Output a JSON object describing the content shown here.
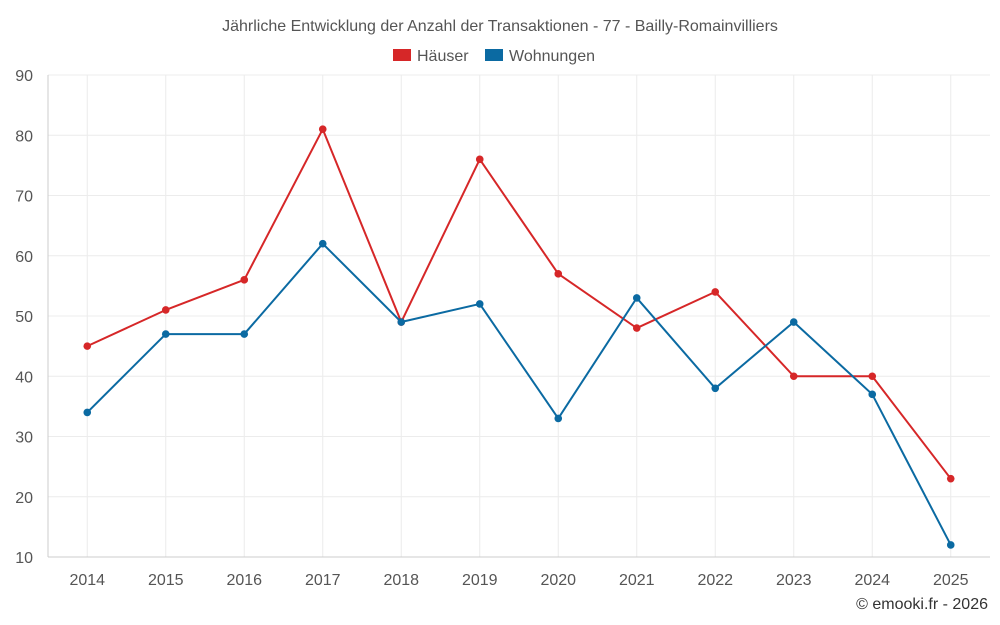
{
  "chart_data": {
    "type": "line",
    "title": "Jährliche Entwicklung der Anzahl der Transaktionen - 77 - Bailly-Romainvilliers",
    "categories": [
      "2014",
      "2015",
      "2016",
      "2017",
      "2018",
      "2019",
      "2020",
      "2021",
      "2022",
      "2023",
      "2024",
      "2025"
    ],
    "series": [
      {
        "name": "Häuser",
        "color": "#d62728",
        "values": [
          45,
          51,
          56,
          81,
          49,
          76,
          57,
          48,
          54,
          40,
          40,
          23
        ]
      },
      {
        "name": "Wohnungen",
        "color": "#0b6aa2",
        "values": [
          34,
          47,
          47,
          62,
          49,
          52,
          33,
          53,
          38,
          49,
          37,
          12
        ]
      }
    ],
    "yticks": [
      10,
      20,
      30,
      40,
      50,
      60,
      70,
      80,
      90
    ],
    "ylim": [
      10,
      90
    ],
    "xlabel": "",
    "ylabel": "",
    "grid": true,
    "legend": "top-center"
  },
  "credit": "© emooki.fr - 2026"
}
